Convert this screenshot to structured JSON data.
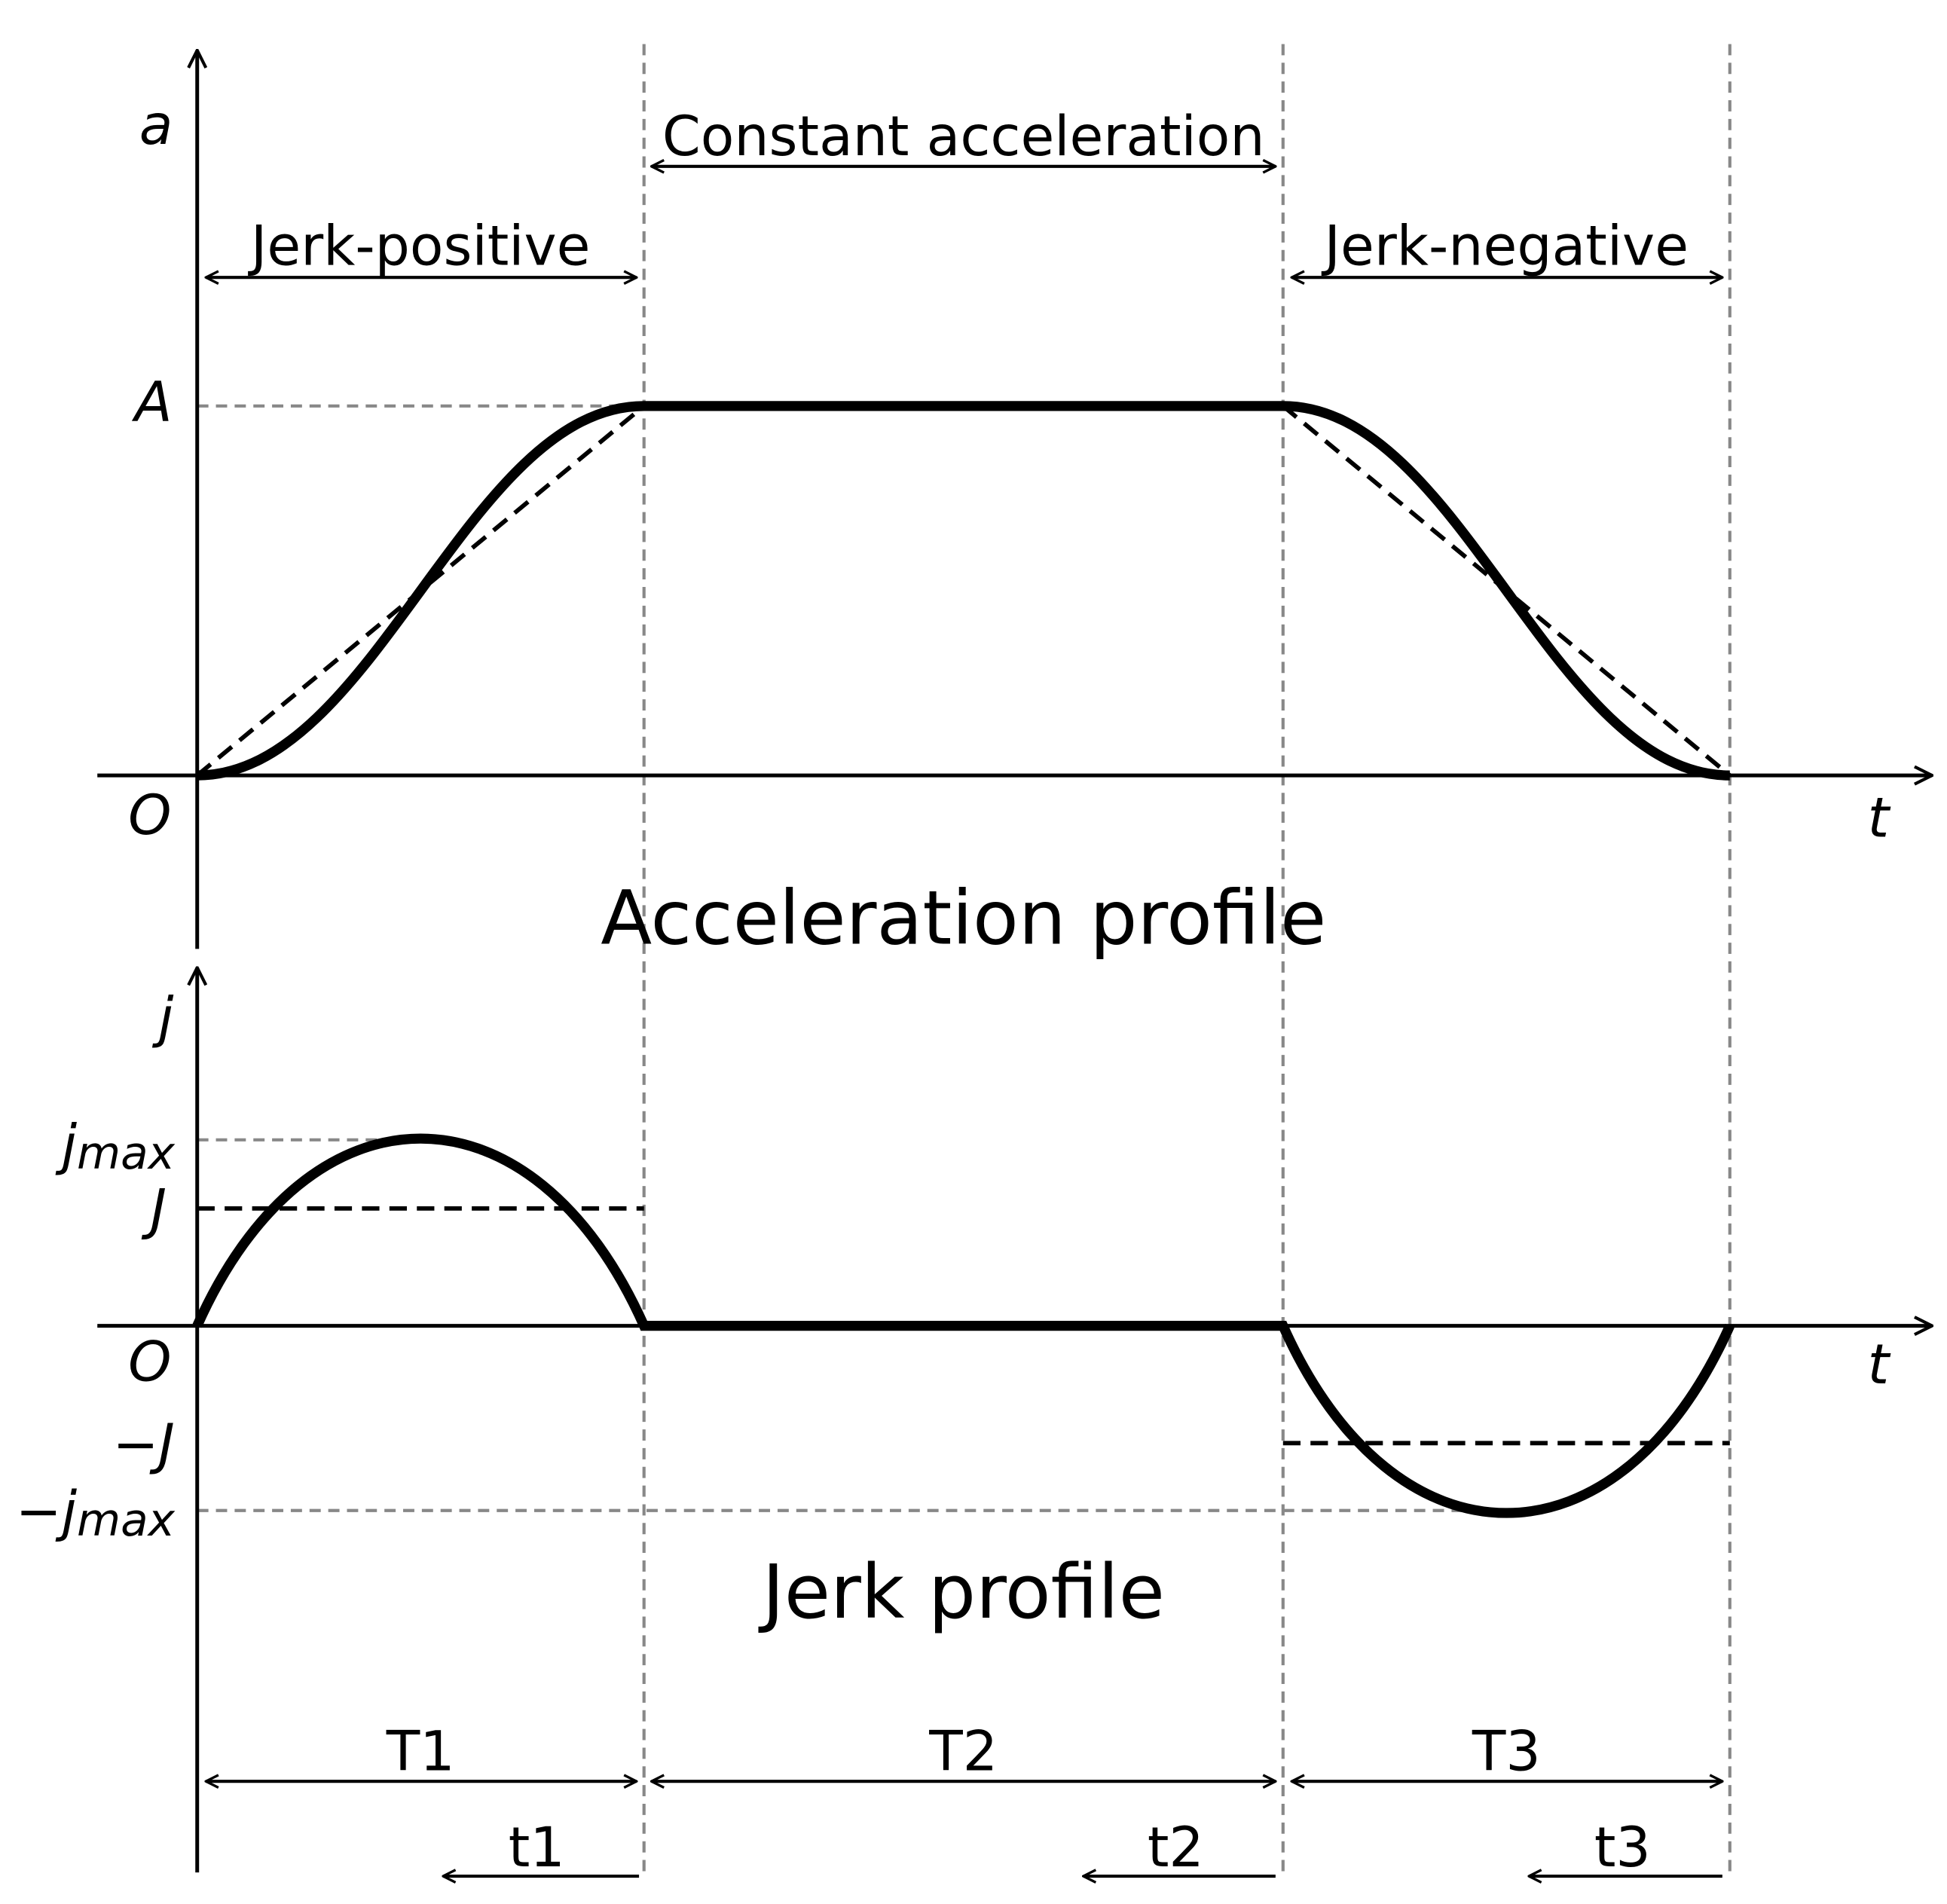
{
  "acceleration_profile": {
    "y_label": "a",
    "x_label": "t",
    "origin": "O",
    "level": "A",
    "title": "Acceleration profile",
    "phases": [
      "Jerk-positive",
      "Constant acceleration",
      "Jerk-negative"
    ]
  },
  "jerk_profile": {
    "y_label": "j",
    "x_label": "t",
    "origin": "O",
    "title": "Jerk profile",
    "levels": [
      {
        "text": "j",
        "sub": "max"
      },
      {
        "text": "J"
      },
      {
        "text": "−J"
      },
      {
        "text": "−j",
        "sub": "max"
      }
    ]
  },
  "durations": {
    "segments": [
      "T1",
      "T2",
      "T3"
    ],
    "points": [
      "t1",
      "t2",
      "t3"
    ]
  }
}
